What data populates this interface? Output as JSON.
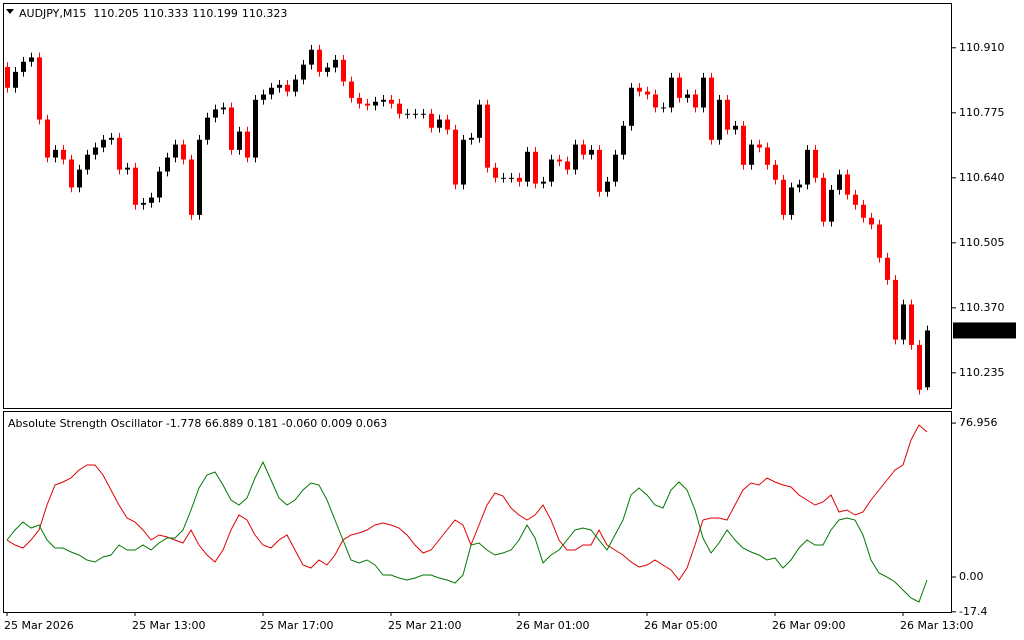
{
  "chart_data": [
    {
      "type": "candlestick",
      "title": "AUDJPY,M15",
      "up_color": "#000000",
      "down_color": "#ff0000",
      "ylim": [
        110.162,
        111.003
      ],
      "yticks": [
        {
          "value": 110.91,
          "label": "110.910"
        },
        110.775,
        {
          "value": 110.64,
          "label": "110.640"
        },
        110.505,
        {
          "value": 110.37,
          "label": "110.370"
        },
        110.235
      ],
      "open": [
        110.87,
        110.827,
        110.86,
        110.881,
        110.89,
        110.761,
        110.682,
        110.698,
        110.678,
        110.62,
        110.657,
        110.688,
        110.703,
        110.719,
        110.723,
        110.657,
        110.661,
        110.584,
        110.588,
        110.599,
        110.653,
        110.682,
        110.709,
        110.678,
        110.563,
        110.719,
        110.765,
        110.782,
        110.786,
        110.698,
        110.736,
        110.682,
        110.802,
        110.813,
        110.827,
        110.833,
        110.819,
        110.844,
        110.875,
        110.906,
        110.86,
        110.869,
        110.885,
        110.84,
        110.806,
        110.794,
        110.79,
        110.798,
        110.802,
        110.794,
        110.773,
        110.773,
        110.773,
        110.773,
        110.744,
        110.761,
        110.74,
        110.626,
        110.719,
        110.723,
        110.792,
        110.661,
        110.64,
        110.64,
        110.64,
        110.632,
        110.694,
        110.628,
        110.632,
        110.678,
        110.674,
        110.657,
        110.709,
        110.688,
        110.698,
        110.611,
        110.632,
        110.688,
        110.748,
        110.827,
        110.819,
        110.813,
        110.786,
        110.786,
        110.848,
        110.806,
        110.813,
        110.786,
        110.848,
        110.719,
        110.802,
        110.74,
        110.748,
        110.667,
        110.709,
        110.703,
        110.667,
        110.636,
        110.563,
        110.62,
        110.626,
        110.698,
        110.64,
        110.549,
        110.615,
        110.647,
        110.605,
        110.584,
        110.557,
        110.543,
        110.474,
        110.428,
        110.304,
        110.377,
        110.293,
        110.205
      ],
      "high": [
        110.88,
        110.87,
        110.891,
        110.9,
        110.9,
        110.771,
        110.708,
        110.708,
        110.688,
        110.667,
        110.698,
        110.713,
        110.729,
        110.733,
        110.733,
        110.671,
        110.671,
        110.598,
        110.609,
        110.663,
        110.692,
        110.719,
        110.719,
        110.688,
        110.729,
        110.775,
        110.792,
        110.796,
        110.796,
        110.746,
        110.746,
        110.812,
        110.823,
        110.837,
        110.843,
        110.843,
        110.854,
        110.885,
        110.916,
        110.916,
        110.879,
        110.895,
        110.895,
        110.85,
        110.816,
        110.804,
        110.808,
        110.812,
        110.812,
        110.804,
        110.783,
        110.783,
        110.783,
        110.783,
        110.771,
        110.771,
        110.75,
        110.729,
        110.733,
        110.802,
        110.802,
        110.671,
        110.65,
        110.65,
        110.65,
        110.704,
        110.704,
        110.642,
        110.688,
        110.688,
        110.684,
        110.719,
        110.719,
        110.708,
        110.708,
        110.642,
        110.698,
        110.758,
        110.837,
        110.837,
        110.829,
        110.823,
        110.796,
        110.858,
        110.858,
        110.823,
        110.823,
        110.858,
        110.858,
        110.812,
        110.812,
        110.758,
        110.758,
        110.719,
        110.719,
        110.713,
        110.677,
        110.646,
        110.63,
        110.636,
        110.708,
        110.708,
        110.65,
        110.625,
        110.657,
        110.657,
        110.615,
        110.594,
        110.567,
        110.553,
        110.484,
        110.438,
        110.387,
        110.387,
        110.303,
        110.333
      ],
      "low": [
        110.817,
        110.817,
        110.85,
        110.871,
        110.751,
        110.672,
        110.672,
        110.668,
        110.61,
        110.61,
        110.647,
        110.678,
        110.693,
        110.709,
        110.647,
        110.647,
        110.574,
        110.574,
        110.578,
        110.589,
        110.643,
        110.672,
        110.668,
        110.553,
        110.553,
        110.709,
        110.755,
        110.772,
        110.688,
        110.688,
        110.672,
        110.672,
        110.792,
        110.803,
        110.817,
        110.809,
        110.809,
        110.834,
        110.865,
        110.85,
        110.85,
        110.859,
        110.83,
        110.796,
        110.784,
        110.78,
        110.78,
        110.788,
        110.784,
        110.763,
        110.763,
        110.763,
        110.763,
        110.734,
        110.734,
        110.73,
        110.616,
        110.616,
        110.709,
        110.713,
        110.651,
        110.63,
        110.63,
        110.63,
        110.622,
        110.622,
        110.618,
        110.618,
        110.622,
        110.664,
        110.647,
        110.647,
        110.678,
        110.678,
        110.601,
        110.601,
        110.622,
        110.678,
        110.738,
        110.809,
        110.803,
        110.776,
        110.776,
        110.776,
        110.796,
        110.796,
        110.776,
        110.776,
        110.709,
        110.709,
        110.73,
        110.73,
        110.657,
        110.657,
        110.693,
        110.657,
        110.626,
        110.553,
        110.553,
        110.61,
        110.616,
        110.63,
        110.539,
        110.539,
        110.605,
        110.595,
        110.574,
        110.547,
        110.533,
        110.464,
        110.418,
        110.294,
        110.294,
        110.283,
        110.19,
        110.199
      ],
      "close": [
        110.827,
        110.86,
        110.881,
        110.89,
        110.761,
        110.682,
        110.698,
        110.678,
        110.62,
        110.657,
        110.688,
        110.703,
        110.719,
        110.723,
        110.657,
        110.661,
        110.584,
        110.588,
        110.599,
        110.653,
        110.682,
        110.709,
        110.678,
        110.563,
        110.719,
        110.765,
        110.782,
        110.786,
        110.698,
        110.736,
        110.682,
        110.802,
        110.813,
        110.827,
        110.833,
        110.819,
        110.844,
        110.875,
        110.906,
        110.86,
        110.869,
        110.885,
        110.84,
        110.806,
        110.794,
        110.79,
        110.798,
        110.802,
        110.794,
        110.773,
        110.773,
        110.773,
        110.773,
        110.744,
        110.761,
        110.74,
        110.626,
        110.719,
        110.723,
        110.792,
        110.661,
        110.64,
        110.64,
        110.64,
        110.632,
        110.694,
        110.628,
        110.632,
        110.678,
        110.674,
        110.657,
        110.709,
        110.688,
        110.698,
        110.611,
        110.632,
        110.688,
        110.748,
        110.827,
        110.819,
        110.813,
        110.786,
        110.786,
        110.848,
        110.806,
        110.813,
        110.786,
        110.848,
        110.719,
        110.802,
        110.74,
        110.748,
        110.667,
        110.709,
        110.703,
        110.667,
        110.636,
        110.563,
        110.62,
        110.626,
        110.698,
        110.64,
        110.549,
        110.615,
        110.647,
        110.605,
        110.584,
        110.557,
        110.543,
        110.474,
        110.428,
        110.304,
        110.377,
        110.293,
        110.2,
        110.323
      ]
    },
    {
      "type": "line",
      "title": "Absolute Strength Oscillator",
      "legend_text": "-1.778 66.889 0.181 -0.060 0.009 0.063",
      "ylim": [
        -17.5,
        83
      ],
      "yticks": [
        76.956,
        {
          "value": 0,
          "label": "0.00"
        },
        -17.4
      ],
      "categories": [
        "25 Mar 2026",
        null,
        null,
        null,
        null,
        null,
        null,
        null,
        null,
        null,
        null,
        null,
        null,
        null,
        null,
        null,
        "25 Mar 13:00",
        null,
        null,
        null,
        null,
        null,
        null,
        null,
        null,
        null,
        null,
        null,
        null,
        null,
        null,
        null,
        "25 Mar 17:00",
        null,
        null,
        null,
        null,
        null,
        null,
        null,
        null,
        null,
        null,
        null,
        null,
        null,
        null,
        null,
        "25 Mar 21:00",
        null,
        null,
        null,
        null,
        null,
        null,
        null,
        null,
        null,
        null,
        null,
        null,
        null,
        null,
        null,
        "26 Mar 01:00",
        null,
        null,
        null,
        null,
        null,
        null,
        null,
        null,
        null,
        null,
        null,
        null,
        null,
        null,
        null,
        "26 Mar 05:00",
        null,
        null,
        null,
        null,
        null,
        null,
        null,
        null,
        null,
        null,
        null,
        null,
        null,
        null,
        null,
        "26 Mar 09:00",
        null,
        null,
        null,
        null,
        null,
        null,
        null,
        null,
        null,
        null,
        null,
        null,
        null,
        null,
        null,
        "26 Mar 13:00",
        null,
        null,
        null
      ],
      "series": [
        {
          "color": "#e00000",
          "values": [
            18.5,
            16,
            14.5,
            18.5,
            23.5,
            36,
            46,
            47.5,
            49.5,
            53.5,
            56,
            56,
            51,
            43.5,
            36,
            29.5,
            27.5,
            23.5,
            18.5,
            21,
            20,
            18.5,
            17,
            23.5,
            16,
            11,
            7.5,
            13.5,
            23.5,
            31,
            28.5,
            21,
            16,
            14.5,
            18.5,
            21,
            13.5,
            6,
            4.5,
            8.5,
            6,
            11,
            18.5,
            21,
            22,
            23.5,
            26,
            27,
            26,
            24.5,
            21,
            16,
            12,
            13.5,
            18.5,
            23.5,
            28.5,
            26,
            16,
            26,
            36,
            42,
            40.5,
            34.5,
            31,
            28.5,
            31,
            36,
            28.5,
            18.5,
            13.5,
            13.5,
            16,
            16,
            23.5,
            16,
            13.5,
            11,
            7.5,
            5,
            6,
            8.5,
            6,
            3.5,
            -1.5,
            4.5,
            16,
            28.5,
            29.5,
            29.5,
            28.5,
            36,
            43.5,
            47,
            46,
            49.5,
            47.5,
            46,
            45,
            41,
            38.5,
            36,
            37.5,
            41,
            32.5,
            33.5,
            31,
            32.5,
            38.5,
            43.5,
            48.5,
            53.5,
            56,
            68.5,
            76,
            72.5
          ]
        },
        {
          "color": "#007800",
          "values": [
            18.5,
            23.5,
            27.5,
            24.5,
            26,
            18.5,
            14.5,
            14.5,
            12.5,
            11,
            8.5,
            7.5,
            10,
            11,
            16,
            13.5,
            13.5,
            16,
            13.5,
            17,
            19.5,
            19.5,
            23.5,
            33.5,
            44.5,
            51,
            52.5,
            46,
            38.5,
            36,
            39.5,
            49.5,
            57.5,
            48.5,
            39.5,
            36,
            38.5,
            43.5,
            47,
            46,
            38.5,
            28.5,
            18.5,
            8.5,
            7,
            8.5,
            6,
            1,
            1,
            -0.5,
            -1.5,
            -0.5,
            1,
            1,
            -0.5,
            -1.5,
            -3,
            1,
            16,
            17,
            13.5,
            11,
            12,
            13.5,
            18.5,
            26,
            19.5,
            7,
            11,
            13.5,
            18.5,
            23.5,
            24.5,
            23.5,
            18.5,
            13.5,
            21,
            28.5,
            41,
            44.5,
            41,
            36,
            34.5,
            43.5,
            47.5,
            43.5,
            33.5,
            19.5,
            12,
            17,
            23.5,
            18.5,
            14.5,
            12.5,
            11,
            8.5,
            9.5,
            4.5,
            8.5,
            14.5,
            18.5,
            16,
            16,
            23.5,
            28.5,
            29.5,
            28.5,
            21,
            8.5,
            2,
            0,
            -2.5,
            -6.5,
            -10.5,
            -12.5,
            -1.5
          ]
        }
      ]
    }
  ]
}
